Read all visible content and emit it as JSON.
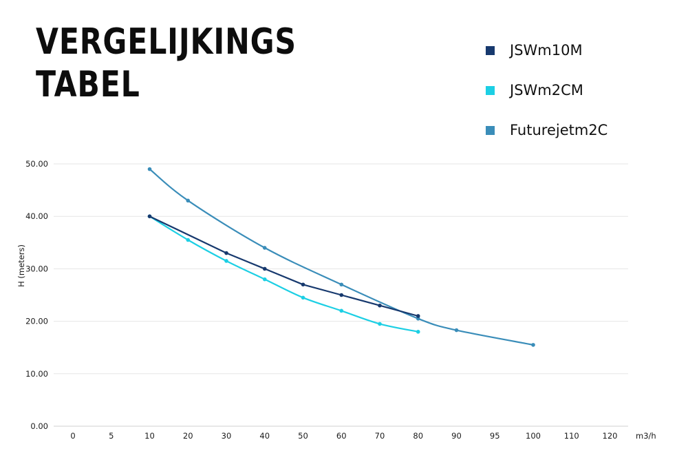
{
  "title_lines": [
    "VERGELIJKINGS",
    "TABEL"
  ],
  "chart_data": {
    "type": "line",
    "xlabel": "m3/h",
    "ylabel": "H (meters)",
    "categories": [
      "0",
      "5",
      "10",
      "20",
      "30",
      "40",
      "50",
      "60",
      "70",
      "80",
      "90",
      "95",
      "100",
      "110",
      "120"
    ],
    "yticks": [
      "0.00",
      "10.00",
      "20.00",
      "30.00",
      "40.00",
      "50.00"
    ],
    "ylim": [
      0,
      50
    ],
    "grid": true,
    "legend_position": "top-right",
    "series": [
      {
        "name": "JSWm10M",
        "color": "#17396e",
        "smooth": false,
        "points": [
          [
            "10",
            40
          ],
          [
            "30",
            33
          ],
          [
            "40",
            30
          ],
          [
            "50",
            27
          ],
          [
            "60",
            25
          ],
          [
            "70",
            23
          ],
          [
            "80",
            21
          ]
        ]
      },
      {
        "name": "JSWm2CM",
        "color": "#1ccfe4",
        "smooth": true,
        "points": [
          [
            "10",
            40
          ],
          [
            "20",
            35.5
          ],
          [
            "30",
            31.5
          ],
          [
            "40",
            28
          ],
          [
            "50",
            24.5
          ],
          [
            "60",
            22
          ],
          [
            "70",
            19.5
          ],
          [
            "80",
            18
          ]
        ]
      },
      {
        "name": "Futurejetm2C",
        "color": "#3a8db9",
        "smooth": true,
        "points": [
          [
            "10",
            49
          ],
          [
            "20",
            43
          ],
          [
            "40",
            34
          ],
          [
            "60",
            27
          ],
          [
            "80",
            20.5
          ],
          [
            "90",
            18.3
          ],
          [
            "100",
            15.5
          ]
        ]
      }
    ]
  }
}
